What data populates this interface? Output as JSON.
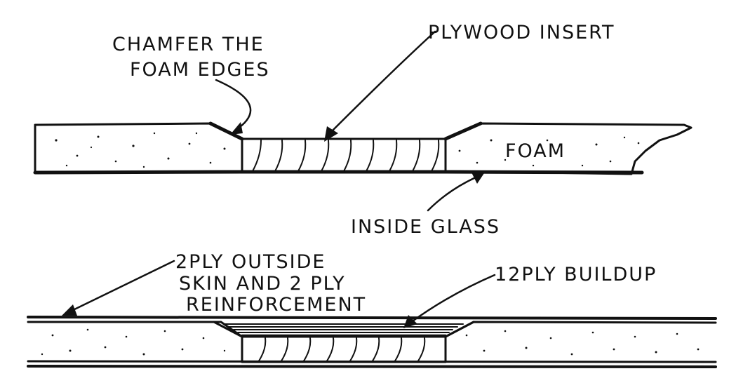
{
  "labels": {
    "chamfer_line1": "CHAMFER THE",
    "chamfer_line2": "FOAM EDGES",
    "plywood": "PLYWOOD INSERT",
    "foam": "FOAM",
    "inside_glass": "INSIDE GLASS",
    "outside_line1": "2PLY OUTSIDE",
    "outside_line2": "SKIN AND 2 PLY",
    "outside_line3": "REINFORCEMENT",
    "buildup": "12PLY BUILDUP"
  }
}
